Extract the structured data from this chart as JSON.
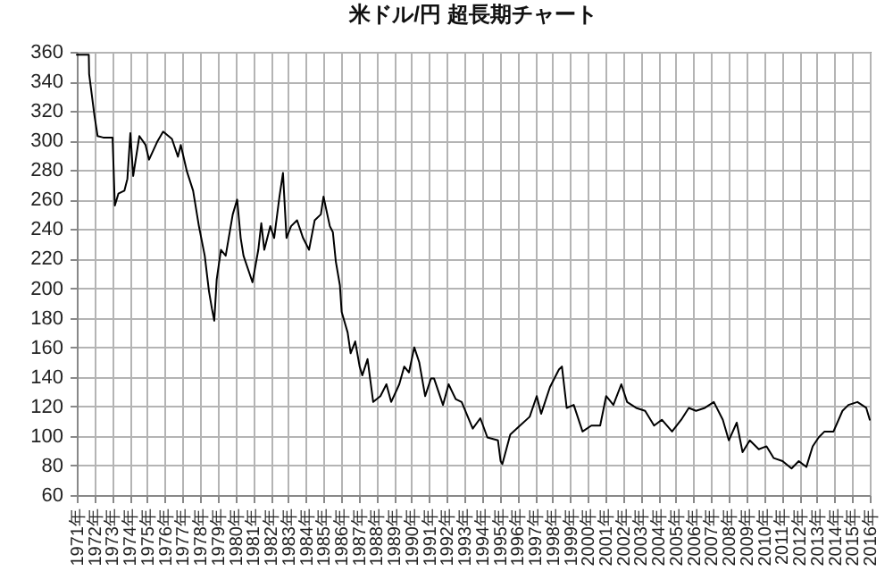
{
  "chart_data": {
    "type": "line",
    "title": "米ドル/円  超長期チャート",
    "grid": true,
    "line_style": "solid",
    "marker": "none",
    "xlim": [
      1971,
      2016
    ],
    "xticks": [
      {
        "value": 1971,
        "label": "1971年"
      },
      {
        "value": 1972,
        "label": "1972年"
      },
      {
        "value": 1973,
        "label": "1973年"
      },
      {
        "value": 1974,
        "label": "1974年"
      },
      {
        "value": 1975,
        "label": "1975年"
      },
      {
        "value": 1976,
        "label": "1976年"
      },
      {
        "value": 1977,
        "label": "1977年"
      },
      {
        "value": 1978,
        "label": "1978年"
      },
      {
        "value": 1979,
        "label": "1979年"
      },
      {
        "value": 1980,
        "label": "1980年"
      },
      {
        "value": 1981,
        "label": "1981年"
      },
      {
        "value": 1982,
        "label": "1982年"
      },
      {
        "value": 1983,
        "label": "1983年"
      },
      {
        "value": 1984,
        "label": "1984年"
      },
      {
        "value": 1985,
        "label": "1985年"
      },
      {
        "value": 1986,
        "label": "1986年"
      },
      {
        "value": 1987,
        "label": "1987年"
      },
      {
        "value": 1988,
        "label": "1988年"
      },
      {
        "value": 1989,
        "label": "1989年"
      },
      {
        "value": 1990,
        "label": "1990年"
      },
      {
        "value": 1991,
        "label": "1991年"
      },
      {
        "value": 1992,
        "label": "1992年"
      },
      {
        "value": 1993,
        "label": "1993年"
      },
      {
        "value": 1994,
        "label": "1994年"
      },
      {
        "value": 1995,
        "label": "1995年"
      },
      {
        "value": 1996,
        "label": "1996年"
      },
      {
        "value": 1997,
        "label": "1997年"
      },
      {
        "value": 1998,
        "label": "1998年"
      },
      {
        "value": 1999,
        "label": "1999年"
      },
      {
        "value": 2000,
        "label": "2000年"
      },
      {
        "value": 2001,
        "label": "2001年"
      },
      {
        "value": 2002,
        "label": "2002年"
      },
      {
        "value": 2003,
        "label": "2003年"
      },
      {
        "value": 2004,
        "label": "2004年"
      },
      {
        "value": 2005,
        "label": "2005年"
      },
      {
        "value": 2006,
        "label": "2006年"
      },
      {
        "value": 2007,
        "label": "2007年"
      },
      {
        "value": 2008,
        "label": "2008年"
      },
      {
        "value": 2009,
        "label": "2009年"
      },
      {
        "value": 2010,
        "label": "2010年"
      },
      {
        "value": 2011,
        "label": "2011年"
      },
      {
        "value": 2012,
        "label": "2012年"
      },
      {
        "value": 2013,
        "label": "2013年"
      },
      {
        "value": 2014,
        "label": "2014年"
      },
      {
        "value": 2015,
        "label": "2015年"
      },
      {
        "value": 2016,
        "label": "2016年"
      }
    ],
    "ylim": [
      60,
      360
    ],
    "yticks": [
      60,
      80,
      100,
      120,
      140,
      160,
      180,
      200,
      220,
      240,
      260,
      280,
      300,
      320,
      340,
      360
    ],
    "series": [
      {
        "color": "#000000",
        "x": [
          1971.0,
          1971.68,
          1971.7,
          1971.85,
          1972.0,
          1972.18,
          1972.5,
          1973.03,
          1973.13,
          1973.16,
          1973.36,
          1973.7,
          1973.87,
          1974.04,
          1974.2,
          1974.55,
          1974.9,
          1975.1,
          1975.56,
          1975.9,
          1976.4,
          1976.74,
          1976.9,
          1977.25,
          1977.6,
          1977.93,
          1978.26,
          1978.5,
          1978.67,
          1978.8,
          1978.94,
          1979.18,
          1979.45,
          1979.85,
          1980.1,
          1980.3,
          1980.46,
          1980.8,
          1980.97,
          1981.3,
          1981.47,
          1981.64,
          1981.98,
          1982.2,
          1982.5,
          1982.7,
          1982.9,
          1983.16,
          1983.5,
          1983.84,
          1984.18,
          1984.5,
          1984.85,
          1985.0,
          1985.36,
          1985.53,
          1985.7,
          1985.93,
          1986.03,
          1986.37,
          1986.54,
          1986.8,
          1987.05,
          1987.2,
          1987.5,
          1987.82,
          1988.23,
          1988.57,
          1988.84,
          1989.3,
          1989.58,
          1989.85,
          1990.15,
          1990.43,
          1990.77,
          1991.1,
          1991.27,
          1991.78,
          1992.1,
          1992.5,
          1992.84,
          1993.47,
          1993.9,
          1994.3,
          1994.9,
          1995.05,
          1995.15,
          1995.6,
          1996.15,
          1996.7,
          1997.1,
          1997.35,
          1997.85,
          1998.36,
          1998.53,
          1998.8,
          1999.2,
          1999.7,
          2000.2,
          2000.7,
          2001.04,
          2001.45,
          2001.9,
          2002.23,
          2002.74,
          2003.25,
          2003.76,
          2004.2,
          2004.78,
          2005.3,
          2005.73,
          2006.14,
          2006.64,
          2007.15,
          2007.66,
          2008.0,
          2008.45,
          2008.78,
          2009.19,
          2009.7,
          2010.14,
          2010.55,
          2011.05,
          2011.56,
          2011.97,
          2012.4,
          2012.76,
          2013.1,
          2013.43,
          2013.94,
          2014.45,
          2014.79,
          2015.3,
          2015.8,
          2016.0
        ],
        "values": [
          358,
          358,
          345,
          331,
          317,
          303,
          302,
          302,
          266,
          256,
          264,
          266,
          274,
          305,
          276,
          303,
          297,
          287,
          299,
          306,
          301,
          289,
          297,
          279,
          266,
          242,
          222,
          198,
          186,
          178,
          206,
          226,
          222,
          250,
          260,
          234,
          222,
          210,
          204,
          226,
          244,
          226,
          242,
          234,
          262,
          278,
          234,
          242,
          246,
          234,
          226,
          246,
          250,
          262,
          242,
          238,
          218,
          202,
          184,
          170,
          156,
          164,
          147,
          141,
          152,
          123,
          127,
          135,
          123,
          135,
          147,
          143,
          160,
          150,
          127,
          139,
          139,
          121,
          135,
          125,
          123,
          105,
          112,
          99,
          97,
          83,
          81,
          101,
          107,
          113,
          127,
          115,
          133,
          145,
          147,
          119,
          121,
          103,
          107,
          107,
          127,
          121,
          135,
          123,
          119,
          117,
          107,
          111,
          103,
          111,
          119,
          117,
          119,
          123,
          111,
          97,
          109,
          89,
          97,
          91,
          93,
          85,
          83,
          78,
          83,
          79,
          93,
          99,
          103,
          103,
          117,
          121,
          123,
          119,
          111
        ]
      }
    ]
  }
}
